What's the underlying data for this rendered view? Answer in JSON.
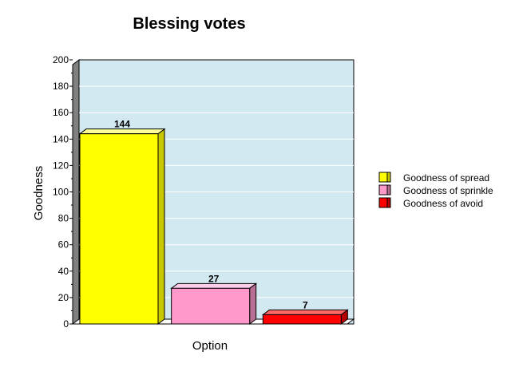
{
  "chart_data": {
    "type": "bar",
    "title": "Blessing votes",
    "xlabel": "Option",
    "ylabel": "Goodness",
    "ylim": [
      0,
      200
    ],
    "yticks": [
      0,
      20,
      40,
      60,
      80,
      100,
      120,
      140,
      160,
      180,
      200
    ],
    "grid": true,
    "legend_position": "right",
    "plot_background": "#d3e9f2",
    "series": [
      {
        "name": "Goodness of spread",
        "value": 144,
        "color": "#ffff00",
        "side": "#c8c800",
        "top": "#ffff99"
      },
      {
        "name": "Goodness of sprinkle",
        "value": 27,
        "color": "#ff99cc",
        "side": "#b86f93",
        "top": "#ffccea"
      },
      {
        "name": "Goodness of avoid",
        "value": 7,
        "color": "#ff0000",
        "side": "#b80000",
        "top": "#ff6666"
      }
    ]
  }
}
